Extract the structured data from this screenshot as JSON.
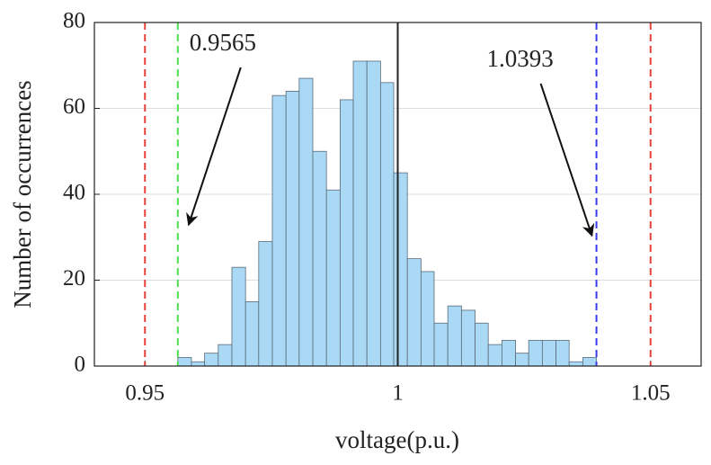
{
  "chart_data": {
    "type": "histogram",
    "xlabel": "voltage(p.u.)",
    "ylabel": "Number of occurrences",
    "bins": [
      0.9565,
      0.9592,
      0.9618,
      0.9645,
      0.9672,
      0.9699,
      0.9725,
      0.9752,
      0.9779,
      0.9805,
      0.9832,
      0.9859,
      0.9886,
      0.9912,
      0.9939,
      0.9966,
      0.9992,
      1.0019,
      1.0046,
      1.0072,
      1.0099,
      1.0126,
      1.0153,
      1.0179,
      1.0206,
      1.0233,
      1.0259,
      1.0286,
      1.0313,
      1.0339,
      1.0366,
      1.0393
    ],
    "values": [
      2,
      1,
      3,
      5,
      23,
      15,
      29,
      63,
      64,
      67,
      50,
      41,
      62,
      71,
      71,
      66,
      45,
      25,
      22,
      10,
      14,
      13,
      10,
      5,
      6,
      3,
      6,
      6,
      6,
      1,
      2
    ],
    "color": "#aad9f5",
    "xlim": [
      0.94,
      1.06
    ],
    "xticks": [
      0.95,
      1,
      1.05
    ],
    "ylim": [
      0,
      80
    ],
    "yticks": [
      0,
      20,
      40,
      60,
      80
    ],
    "grid": true,
    "reference_lines": [
      {
        "value": 0.95,
        "color": "#e8413c",
        "style": "dashed"
      },
      {
        "value": 1.05,
        "color": "#e8413c",
        "style": "dashed"
      },
      {
        "value": 1,
        "color": "#222222",
        "style": "solid"
      },
      {
        "value": 0.9565,
        "color": "#4ee04e",
        "style": "dashed",
        "label": "0.9565",
        "label_side": "left"
      },
      {
        "value": 1.0393,
        "color": "#3b3bf0",
        "style": "dashed",
        "label": "1.0393",
        "label_side": "right"
      }
    ]
  }
}
